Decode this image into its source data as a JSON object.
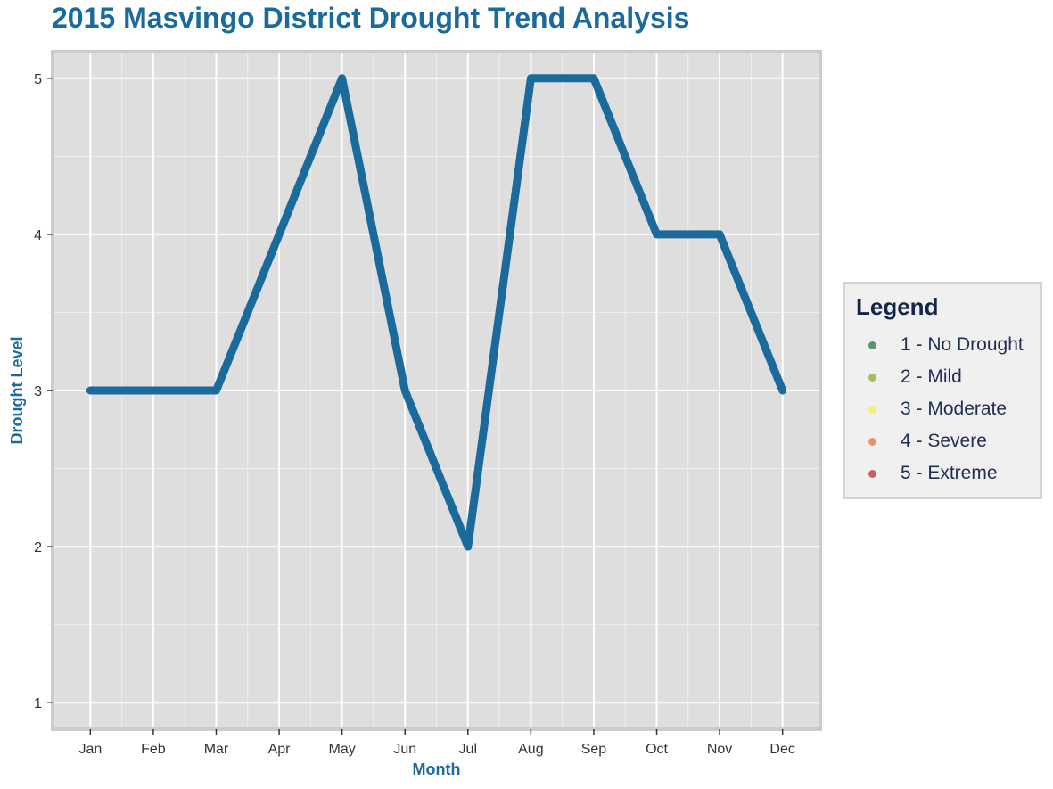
{
  "chart_data": {
    "type": "line",
    "title": "2015 Masvingo District Drought Trend Analysis",
    "xlabel": "Month",
    "ylabel": "Drought Level",
    "categories": [
      "Jan",
      "Feb",
      "Mar",
      "Apr",
      "May",
      "Jun",
      "Jul",
      "Aug",
      "Sep",
      "Oct",
      "Nov",
      "Dec"
    ],
    "values": [
      3,
      3,
      3,
      4,
      5,
      3,
      2,
      5,
      5,
      4,
      4,
      3
    ],
    "yticks": [
      1,
      2,
      3,
      4,
      5
    ],
    "ylim": [
      0.83,
      5.17
    ],
    "grid": true,
    "line_color": "#1b6a9c",
    "panel_background": "#dedede",
    "legend": {
      "title": "Legend",
      "position": "right",
      "items": [
        {
          "label": "1 - No Drought",
          "color": "#3d8a4f"
        },
        {
          "label": "2 - Mild",
          "color": "#95b84a"
        },
        {
          "label": "3 - Moderate",
          "color": "#f4f15e"
        },
        {
          "label": "4 - Severe",
          "color": "#df8a55"
        },
        {
          "label": "5 - Extreme",
          "color": "#c94444"
        }
      ]
    }
  }
}
